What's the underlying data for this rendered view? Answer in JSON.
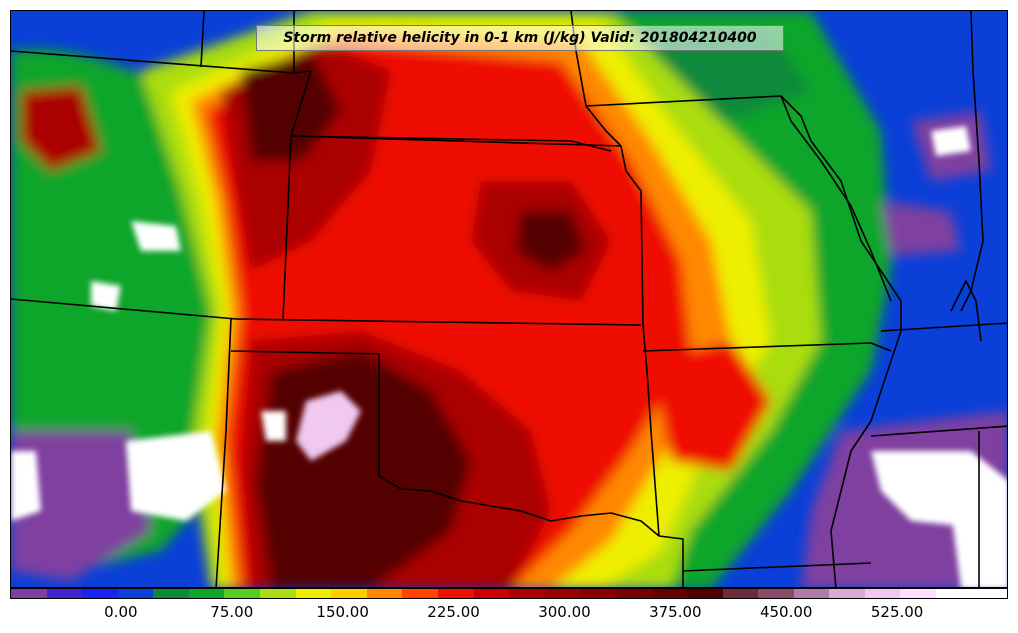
{
  "title": "Storm relative helicity in 0-1 km (J/kg) Valid: 201804210400",
  "colorbar": {
    "colors": [
      "#7f3fa0",
      "#4422cc",
      "#1a22ee",
      "#0a3fd8",
      "#0a8a3a",
      "#11a52a",
      "#55cc22",
      "#aadd11",
      "#eeee00",
      "#ffcc00",
      "#ff8800",
      "#ff4400",
      "#ee1100",
      "#cc0000",
      "#aa0000",
      "#990000",
      "#880000",
      "#770000",
      "#660000",
      "#550000",
      "#6b2b3b",
      "#8c4a6a",
      "#b07aa8",
      "#d9a8d9",
      "#f0c8f0",
      "#ffe0ff",
      "#ffffff",
      "#ffffff"
    ],
    "ticks": [
      {
        "value": 0,
        "label": "0.00"
      },
      {
        "value": 75,
        "label": "75.00"
      },
      {
        "value": 150,
        "label": "150.00"
      },
      {
        "value": 225,
        "label": "225.00"
      },
      {
        "value": 300,
        "label": "300.00"
      },
      {
        "value": 375,
        "label": "375.00"
      },
      {
        "value": 450,
        "label": "450.00"
      },
      {
        "value": 525,
        "label": "525.00"
      }
    ],
    "range": [
      -75,
      600
    ]
  },
  "colors": {
    "very_high": "#550000",
    "high": "#aa0000",
    "red": "#ee1100",
    "orange": "#ff8800",
    "yellow": "#eeee00",
    "yellowgreen": "#aadd11",
    "green": "#11a52a",
    "darkgreen": "#0a8a3a",
    "blue": "#0a3fd8",
    "violet": "#4422cc",
    "purple": "#7f3fa0",
    "pink": "#f0c8f0",
    "white": "#ffffff",
    "border": "#000000"
  }
}
